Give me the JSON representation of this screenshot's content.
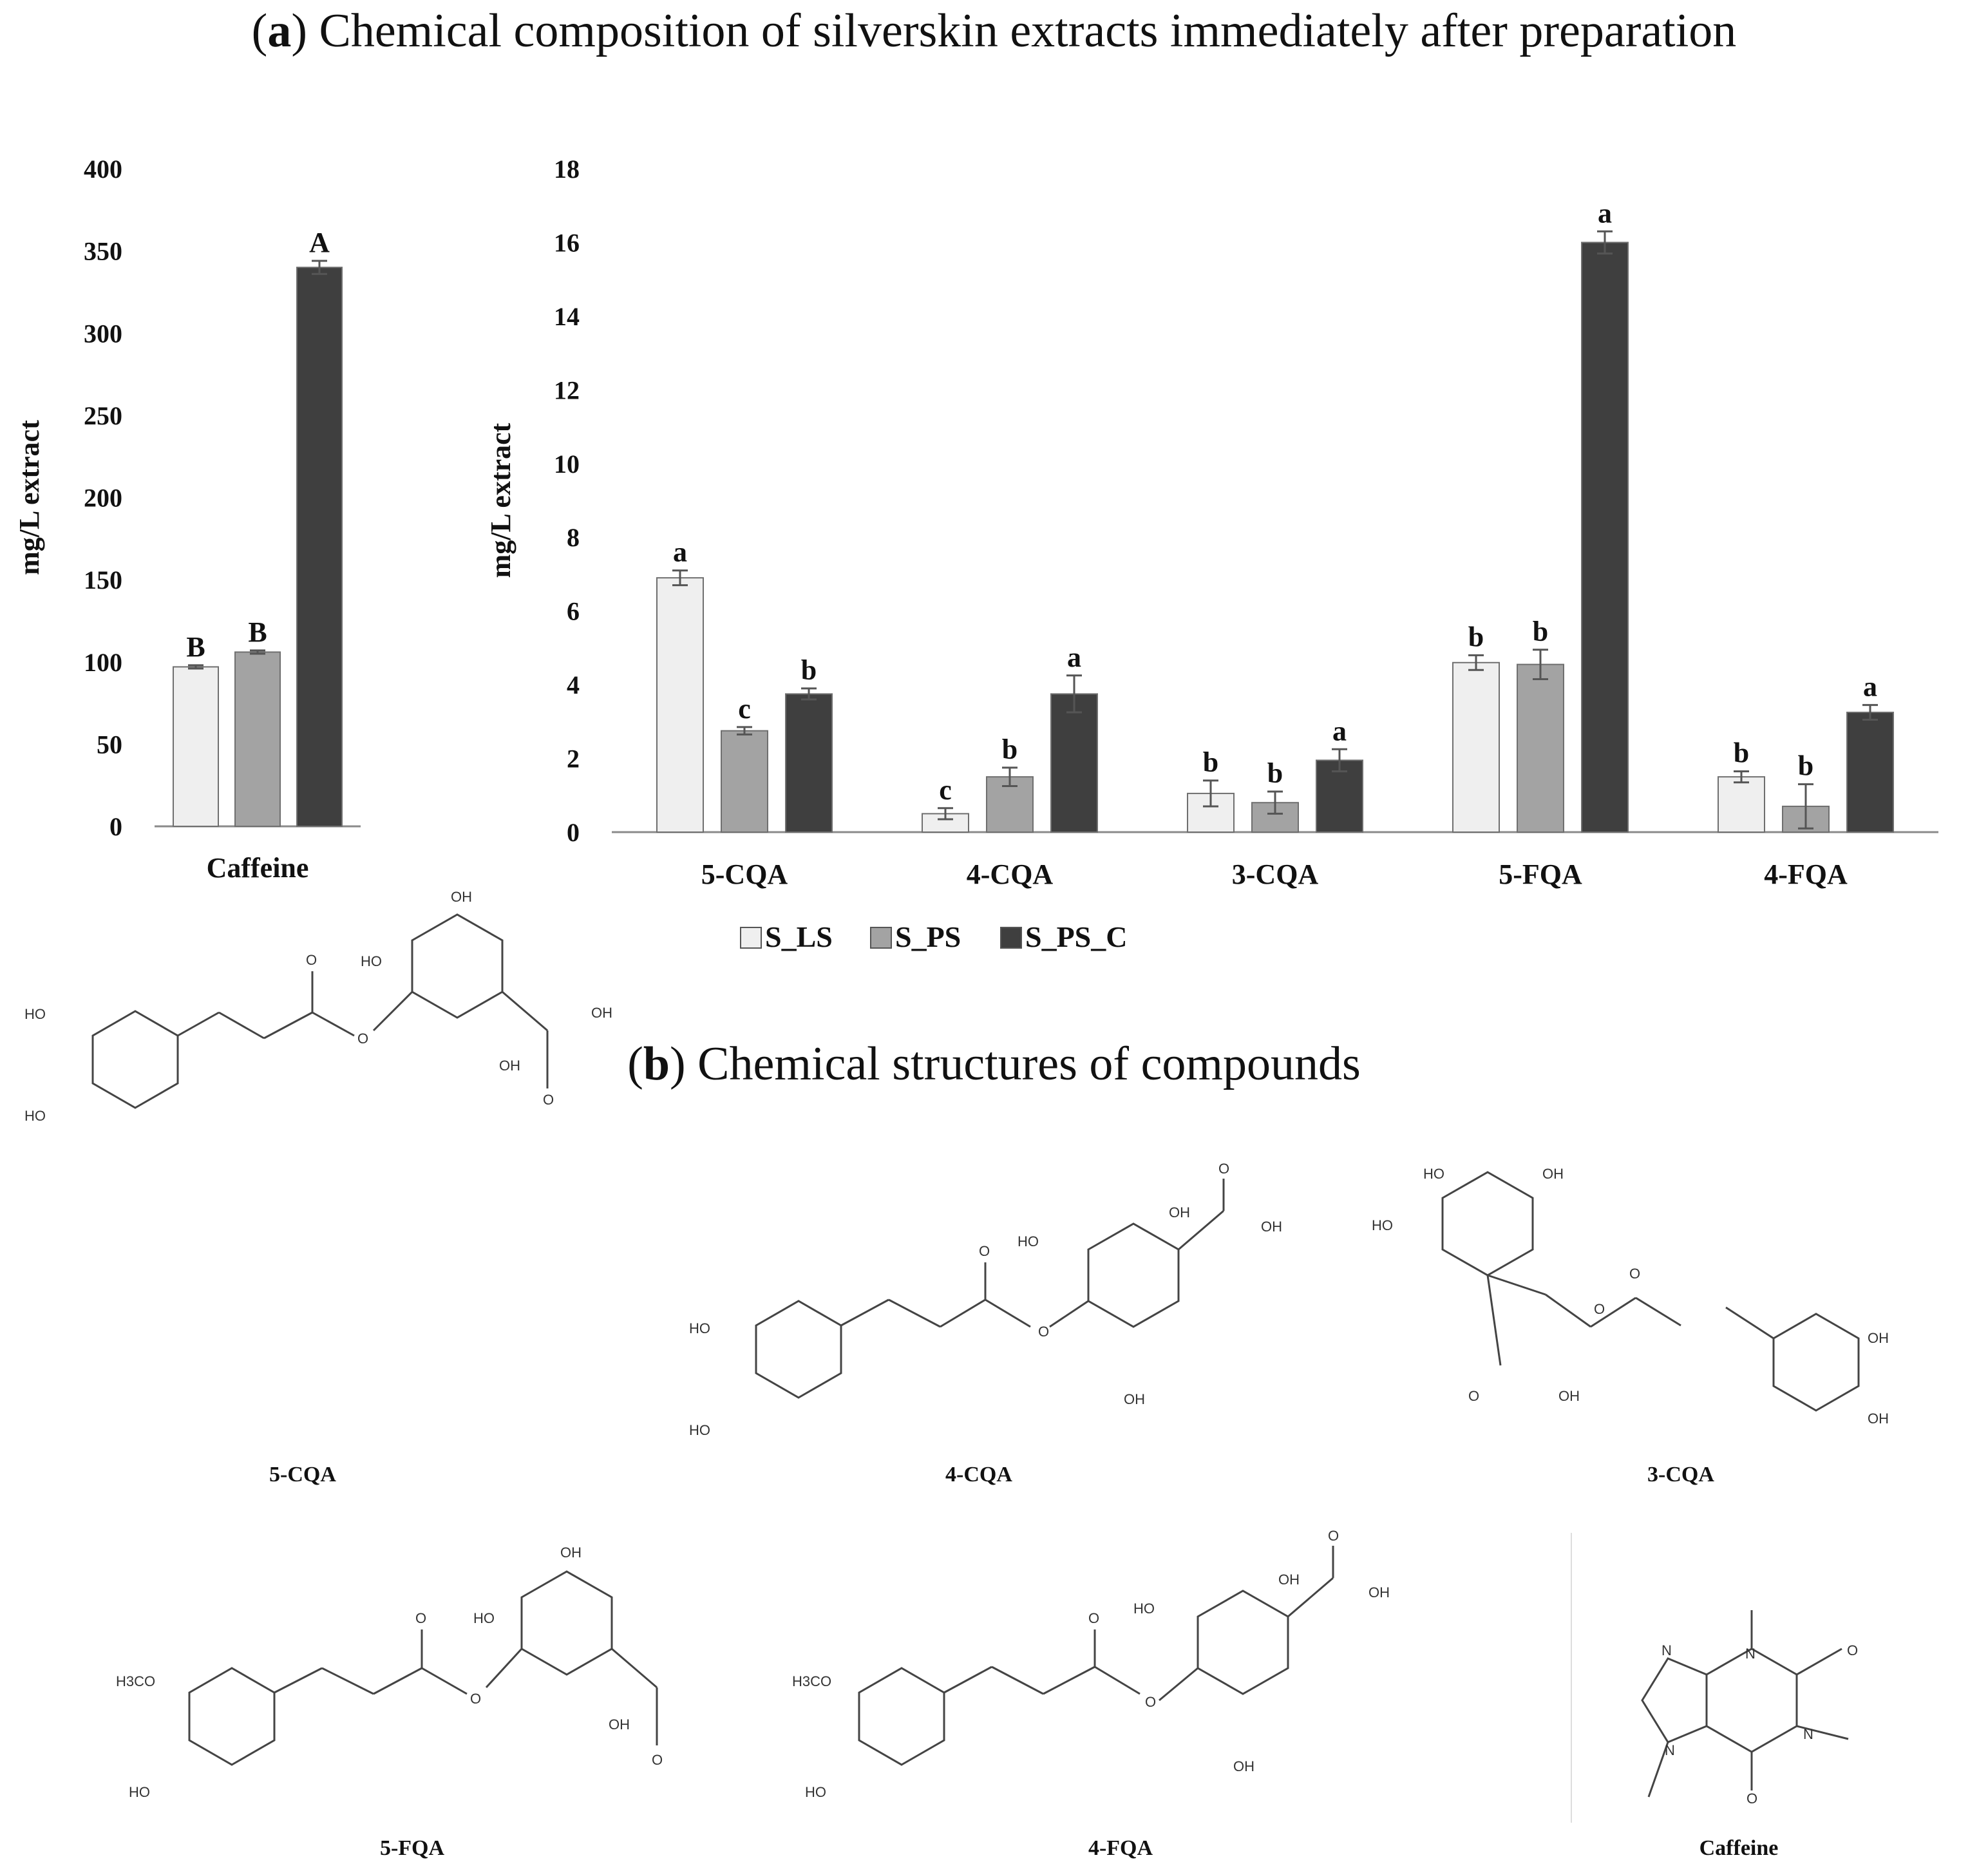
{
  "panel_a": {
    "letter": "a",
    "title": "Chemical composition of silverskin extracts immediately after preparation"
  },
  "panel_b": {
    "letter": "b",
    "title": "Chemical structures of compounds"
  },
  "colors": {
    "S_LS": "#efefef",
    "S_PS": "#a3a3a3",
    "S_PS_C": "#3f3f3f",
    "axis": "#8a8a8a",
    "error": "#555555"
  },
  "chart_data": [
    {
      "type": "bar",
      "categories": [
        "Caffeine"
      ],
      "ylabel": "mg/L extract",
      "ylim": [
        0,
        400
      ],
      "yticks": [
        "0",
        "50",
        "100",
        "150",
        "200",
        "250",
        "300",
        "350",
        "400"
      ],
      "series": [
        {
          "name": "S_LS",
          "values": [
            97
          ],
          "errors": [
            1
          ],
          "letters": [
            "B"
          ]
        },
        {
          "name": "S_PS",
          "values": [
            106
          ],
          "errors": [
            1
          ],
          "letters": [
            "B"
          ]
        },
        {
          "name": "S_PS_C",
          "values": [
            340
          ],
          "errors": [
            4
          ],
          "letters": [
            "A"
          ]
        }
      ],
      "grid": false
    },
    {
      "type": "bar",
      "categories": [
        "5-CQA",
        "4-CQA",
        "3-CQA",
        "5-FQA",
        "4-FQA"
      ],
      "ylabel": "mg/L extract",
      "ylim": [
        0,
        18
      ],
      "yticks": [
        "0",
        "2",
        "4",
        "6",
        "8",
        "10",
        "12",
        "14",
        "16",
        "18"
      ],
      "series": [
        {
          "name": "S_LS",
          "values": [
            6.9,
            0.5,
            1.05,
            4.6,
            1.5
          ],
          "errors": [
            0.2,
            0.15,
            0.35,
            0.2,
            0.15
          ],
          "letters": [
            "a",
            "c",
            "b",
            "b",
            "b"
          ]
        },
        {
          "name": "S_PS",
          "values": [
            2.75,
            1.5,
            0.8,
            4.55,
            0.7
          ],
          "errors": [
            0.1,
            0.25,
            0.3,
            0.4,
            0.6
          ],
          "letters": [
            "c",
            "b",
            "b",
            "b",
            "b"
          ]
        },
        {
          "name": "S_PS_C",
          "values": [
            3.75,
            3.75,
            1.95,
            16.0,
            3.25
          ],
          "errors": [
            0.15,
            0.5,
            0.3,
            0.3,
            0.2
          ],
          "letters": [
            "b",
            "a",
            "a",
            "a",
            "a"
          ]
        }
      ],
      "legend": [
        "S_LS",
        "S_PS",
        "S_PS_C"
      ],
      "legend_position": "bottom",
      "grid": false
    }
  ],
  "structures": [
    {
      "label": "5-CQA",
      "atoms": [
        "HO",
        "HO",
        "OH",
        "HO",
        "O",
        "O",
        "OH",
        "OH",
        "O"
      ]
    },
    {
      "label": "4-CQA",
      "atoms": [
        "HO",
        "HO",
        "HO",
        "O",
        "O",
        "OH",
        "O",
        "OH",
        "OH"
      ]
    },
    {
      "label": "3-CQA",
      "atoms": [
        "HO",
        "OH",
        "HO",
        "O",
        "O",
        "O",
        "OH",
        "OH",
        "OH"
      ]
    },
    {
      "label": "5-FQA",
      "atoms": [
        "H3CO",
        "HO",
        "OH",
        "HO",
        "O",
        "O",
        "OH",
        "O"
      ]
    },
    {
      "label": "4-FQA",
      "atoms": [
        "H3CO",
        "HO",
        "HO",
        "OH",
        "O",
        "OH",
        "O",
        "O",
        "OH"
      ]
    },
    {
      "label": "Caffeine",
      "atoms": [
        "N",
        "N",
        "N",
        "N",
        "O",
        "O"
      ]
    }
  ]
}
